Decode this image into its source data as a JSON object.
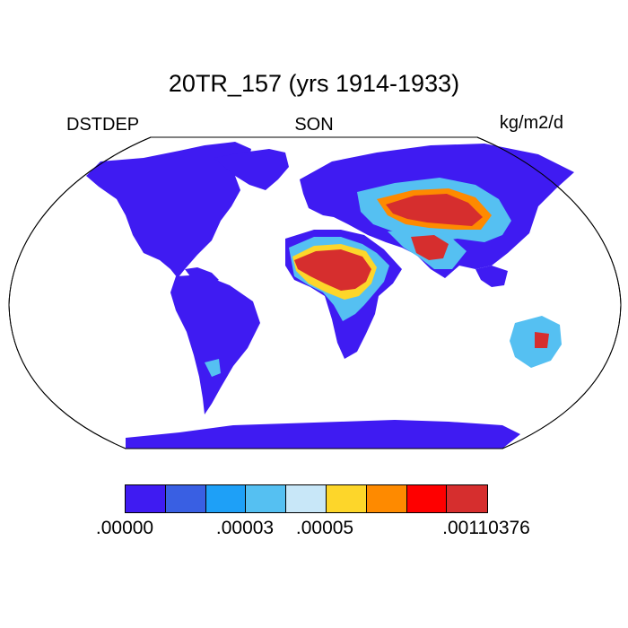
{
  "title": "20TR_157 (yrs 1914-1933)",
  "left_label": "DSTDEP",
  "center_label": "SON",
  "units": "kg/m2/d",
  "colors": {
    "ocean": "#ffffff",
    "land_background": "#3f1bf2",
    "outline": "#000000"
  },
  "colorbar": {
    "colors": [
      "#3f1bf2",
      "#395fe3",
      "#1ea0f7",
      "#55c0f2",
      "#c8e7f8",
      "#fdd62a",
      "#fe8a00",
      "#fe0000",
      "#d62e2e"
    ],
    "labels": [
      ".00000",
      ".00003",
      ".00005",
      ".00110376"
    ]
  }
}
